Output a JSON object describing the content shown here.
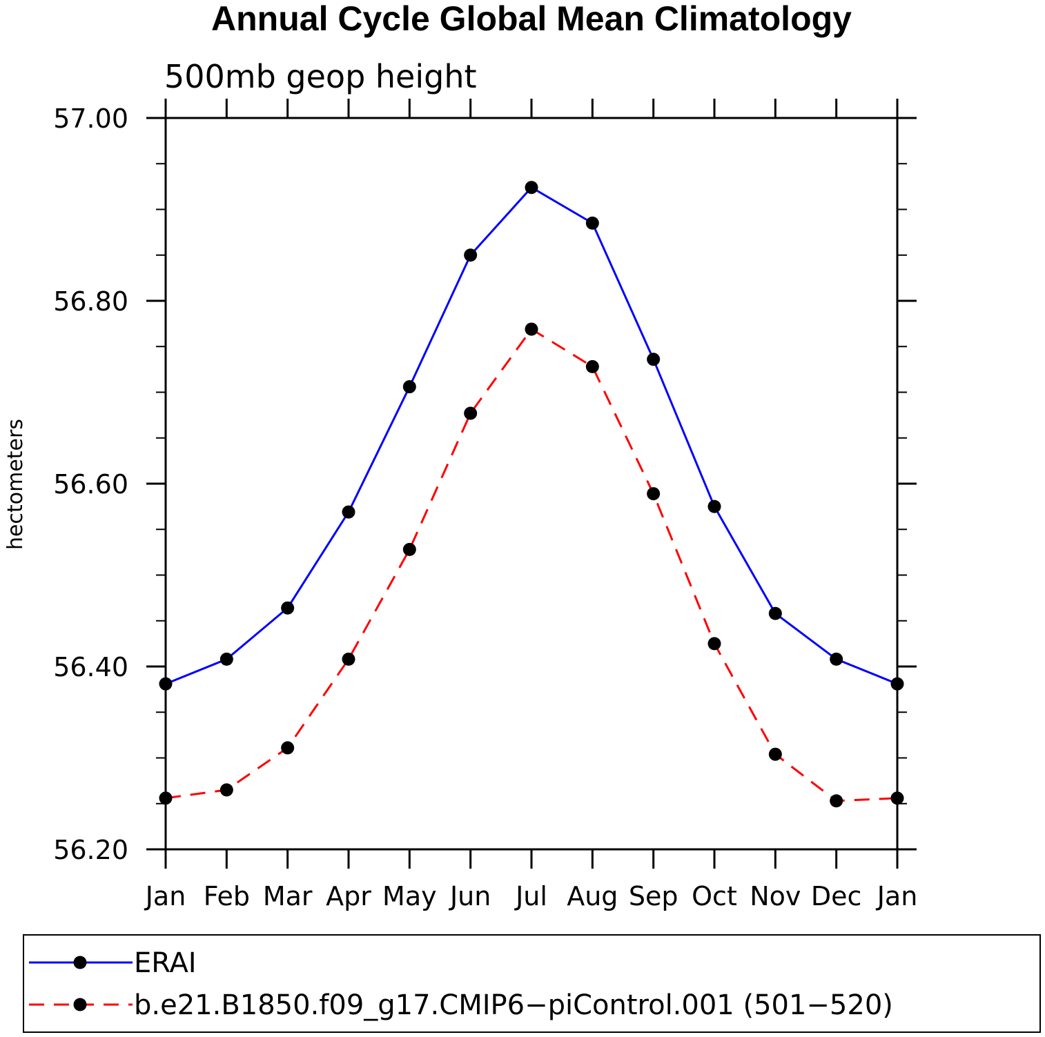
{
  "chart_data": {
    "type": "line",
    "title": "Annual Cycle Global Mean Climatology",
    "subtitle": "500mb geop height",
    "ylabel": "hectometers",
    "xlabel": "",
    "categories": [
      "Jan",
      "Feb",
      "Mar",
      "Apr",
      "May",
      "Jun",
      "Jul",
      "Aug",
      "Sep",
      "Oct",
      "Nov",
      "Dec",
      "Jan"
    ],
    "ylim": [
      56.2,
      57.0
    ],
    "yticks": [
      "56.20",
      "56.40",
      "56.60",
      "56.80",
      "57.00"
    ],
    "legend_position": "bottom",
    "grid": false,
    "series": [
      {
        "name": "ERAI",
        "color": "#0000ff",
        "dash": "solid",
        "values": [
          56.381,
          56.408,
          56.464,
          56.569,
          56.706,
          56.85,
          56.924,
          56.885,
          56.736,
          56.575,
          56.458,
          56.408,
          56.381
        ]
      },
      {
        "name": "b.e21.B1850.f09_g17.CMIP6−piControl.001 (501−520)",
        "color": "#ff0000",
        "dash": "dashed",
        "values": [
          56.256,
          56.265,
          56.311,
          56.408,
          56.528,
          56.677,
          56.769,
          56.728,
          56.589,
          56.425,
          56.304,
          56.253,
          56.256
        ]
      }
    ]
  }
}
